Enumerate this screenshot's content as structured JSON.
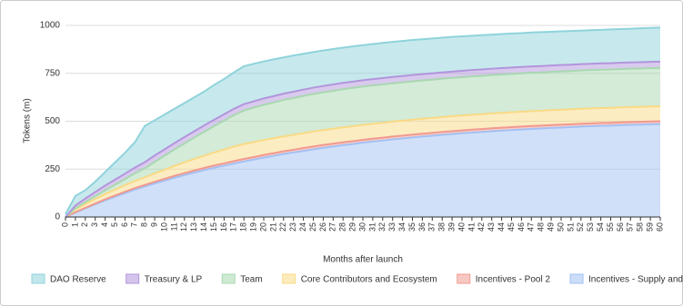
{
  "chart_data": {
    "type": "stacked-area",
    "x_label": "Months after launch",
    "y_label": "Tokens (m)",
    "x": [
      0,
      1,
      2,
      3,
      4,
      5,
      6,
      7,
      8,
      9,
      10,
      11,
      12,
      13,
      14,
      15,
      16,
      17,
      18,
      19,
      20,
      21,
      22,
      23,
      24,
      25,
      26,
      27,
      28,
      29,
      30,
      31,
      32,
      33,
      34,
      35,
      36,
      37,
      38,
      39,
      40,
      41,
      42,
      43,
      44,
      45,
      46,
      47,
      48,
      49,
      50,
      51,
      52,
      53,
      54,
      55,
      56,
      57,
      58,
      59,
      60
    ],
    "xlim": [
      0,
      60
    ],
    "ylim": [
      0,
      1000
    ],
    "yticks": [
      0,
      250,
      500,
      750,
      1000
    ],
    "grid": true,
    "legend": "bottom",
    "series": [
      {
        "name": "DAO Reserve",
        "color": "#8fd3db",
        "values": [
          15,
          50,
          44,
          55,
          71,
          90,
          109,
          132,
          189,
          184,
          182,
          179,
          178,
          177,
          177,
          182,
          184,
          190,
          198,
          196,
          193,
          192,
          189,
          189,
          187,
          186,
          185,
          185,
          184,
          184,
          183,
          183,
          184,
          183,
          183,
          183,
          182,
          182,
          181,
          181,
          180,
          179,
          179,
          178,
          178,
          178,
          177,
          177,
          177,
          176,
          176,
          176,
          175,
          175,
          175,
          176,
          176,
          176,
          177,
          177,
          178
        ]
      },
      {
        "name": "Treasury & LP",
        "color": "#b295dc",
        "values": [
          0,
          15,
          18,
          21,
          24,
          26,
          28,
          30,
          32,
          33,
          33,
          33,
          33,
          33,
          33,
          33,
          33,
          33,
          33,
          33,
          33,
          33,
          33,
          33,
          33,
          33,
          33,
          33,
          33,
          33,
          33,
          33,
          33,
          33,
          33,
          33,
          33,
          33,
          33,
          33,
          33,
          33,
          33,
          33,
          33,
          33,
          33,
          33,
          33,
          33,
          33,
          33,
          33,
          33,
          33,
          33,
          33,
          33,
          33,
          33,
          33
        ]
      },
      {
        "name": "Team",
        "color": "#a8d8b0",
        "values": [
          0,
          5,
          10,
          15,
          20,
          26,
          32,
          40,
          47,
          60,
          73,
          86,
          99,
          112,
          125,
          138,
          151,
          164,
          175,
          180,
          184,
          187,
          190,
          192,
          194,
          196,
          197,
          198,
          199,
          200,
          200,
          200,
          200,
          200,
          200,
          200,
          200,
          200,
          200,
          200,
          200,
          200,
          200,
          200,
          200,
          200,
          200,
          200,
          200,
          200,
          200,
          200,
          200,
          200,
          200,
          200,
          200,
          200,
          200,
          200,
          200
        ]
      },
      {
        "name": "Core Contributors and Ecosystem",
        "color": "#f9da85",
        "values": [
          0,
          15,
          20,
          24,
          28,
          31,
          34,
          37,
          40,
          44,
          48,
          52,
          56,
          60,
          64,
          68,
          72,
          76,
          78,
          78,
          78,
          78,
          78,
          78,
          78,
          78,
          78,
          78,
          78,
          78,
          78,
          78,
          78,
          78,
          78,
          78,
          78,
          78,
          78,
          78,
          78,
          78,
          78,
          78,
          78,
          78,
          78,
          78,
          78,
          78,
          78,
          78,
          78,
          78,
          78,
          78,
          78,
          78,
          78,
          78,
          78
        ]
      },
      {
        "name": "Incentives - Pool 2",
        "color": "#f09a90",
        "values": [
          0,
          2,
          3,
          4,
          5,
          6,
          7,
          8,
          8,
          9,
          9,
          10,
          10,
          11,
          11,
          12,
          12,
          13,
          13,
          13,
          14,
          14,
          14,
          14,
          15,
          15,
          15,
          15,
          15,
          15,
          15,
          15,
          15,
          15,
          15,
          15,
          15,
          15,
          15,
          15,
          15,
          15,
          15,
          15,
          15,
          15,
          15,
          15,
          15,
          15,
          15,
          15,
          15,
          15,
          15,
          15,
          15,
          15,
          15,
          15,
          15
        ]
      },
      {
        "name": "Incentives - Supply and Borrowers",
        "color": "#a3c1f3",
        "values": [
          0,
          23,
          45,
          66,
          87,
          106,
          125,
          143,
          159,
          175,
          190,
          205,
          219,
          232,
          245,
          257,
          268,
          279,
          290,
          300,
          310,
          319,
          329,
          337,
          345,
          353,
          361,
          368,
          375,
          381,
          388,
          394,
          399,
          405,
          410,
          415,
          420,
          424,
          429,
          433,
          437,
          441,
          444,
          448,
          451,
          454,
          457,
          460,
          462,
          465,
          467,
          469,
          472,
          474,
          476,
          477,
          479,
          481,
          482,
          484,
          485
        ]
      }
    ]
  }
}
